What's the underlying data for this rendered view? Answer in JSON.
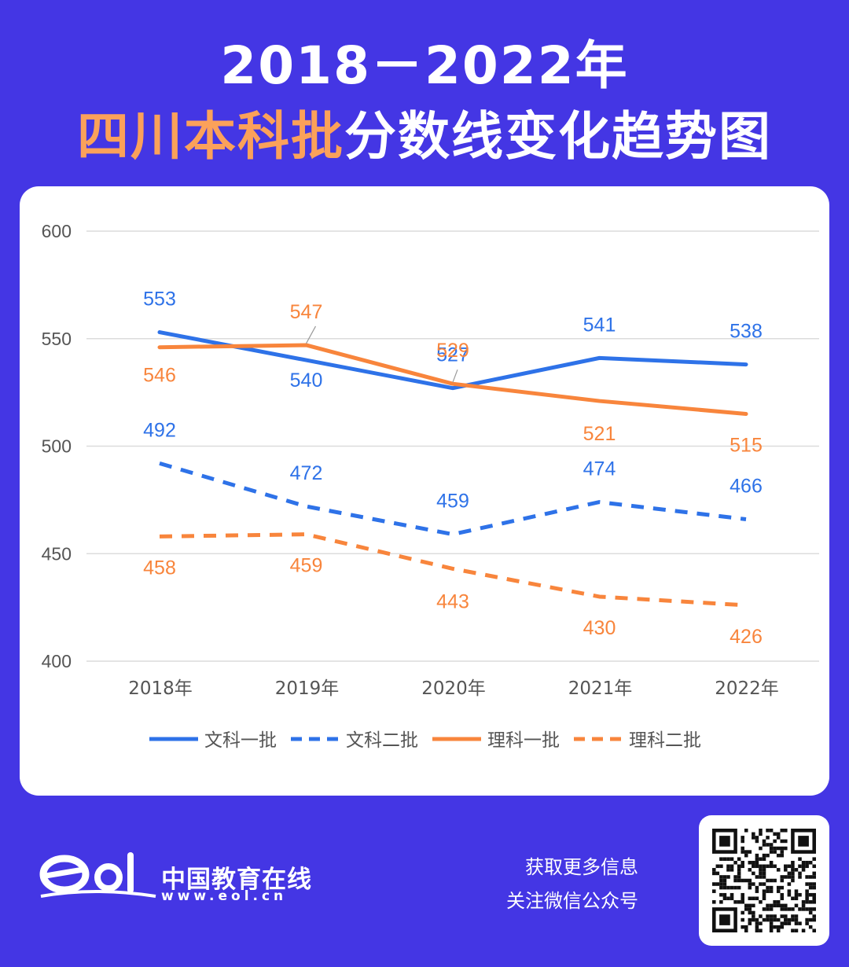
{
  "header": {
    "title_line1": "2018－2022年",
    "title_highlight": "四川本科批",
    "title_rest": "分数线变化趋势图"
  },
  "chart_data": {
    "type": "line",
    "categories": [
      "2018年",
      "2019年",
      "2020年",
      "2021年",
      "2022年"
    ],
    "ylim": [
      400,
      600
    ],
    "yticks": [
      "400",
      "450",
      "500",
      "550",
      "600"
    ],
    "grid": true,
    "legend_position": "bottom",
    "series": [
      {
        "name": "文科一批",
        "values": [
          553,
          540,
          527,
          541,
          538
        ],
        "color": "#2e72e8",
        "dashed": false
      },
      {
        "name": "文科二批",
        "values": [
          492,
          472,
          459,
          474,
          466
        ],
        "color": "#2e72e8",
        "dashed": true
      },
      {
        "name": "理科一批",
        "values": [
          546,
          547,
          529,
          521,
          515
        ],
        "color": "#f8853c",
        "dashed": false
      },
      {
        "name": "理科二批",
        "values": [
          458,
          459,
          443,
          430,
          426
        ],
        "color": "#f8853c",
        "dashed": true
      }
    ]
  },
  "footer": {
    "brand_name": "中国教育在线",
    "brand_url": "www.eol.cn",
    "follow_line1": "获取更多信息",
    "follow_line2": "关注微信公众号"
  }
}
